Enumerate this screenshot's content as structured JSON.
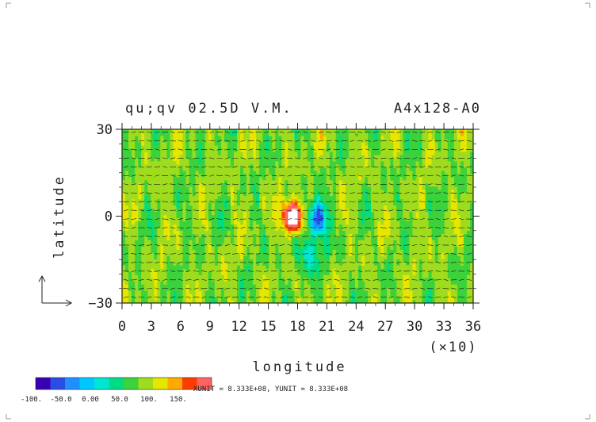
{
  "title_left": "qu;qv 02.5D V.M.",
  "title_right": "A4x128-A0",
  "xlabel": "longitude",
  "ylabel": "latitude",
  "x_multiplier": "(×10)",
  "unit_note": "XUNIT = 8.333E+08, YUNIT = 8.333E+08",
  "colorbar": {
    "labels": [
      "-100.",
      "-50.0",
      "0.00",
      "50.0",
      "100.",
      "150."
    ],
    "colors": [
      "#3a00b4",
      "#2a4de6",
      "#1e90ff",
      "#00c8ff",
      "#00e6d2",
      "#00dc82",
      "#3cd23c",
      "#a0dc1e",
      "#e6e600",
      "#ffaa00",
      "#ff3c00",
      "#ff6464"
    ]
  },
  "chart_data": {
    "type": "heatmap",
    "title": "qu;qv 02.5D V.M.",
    "subtitle": "A4x128-A0",
    "xlabel": "longitude",
    "ylabel": "latitude",
    "xlim": [
      0,
      36
    ],
    "ylim": [
      -30,
      30
    ],
    "x_ticks": [
      "0",
      "3",
      "6",
      "9",
      "12",
      "15",
      "18",
      "21",
      "24",
      "27",
      "30",
      "33",
      "36"
    ],
    "y_ticks": [
      "-30",
      "0",
      "30"
    ],
    "color_levels": [
      -100,
      -50,
      0,
      50,
      100,
      150
    ],
    "features": [
      {
        "name": "positive maximum",
        "x": 17.5,
        "y": 0,
        "value": 150
      },
      {
        "name": "negative minimum",
        "x": 20,
        "y": 0,
        "value": -100
      }
    ],
    "grid": false
  }
}
